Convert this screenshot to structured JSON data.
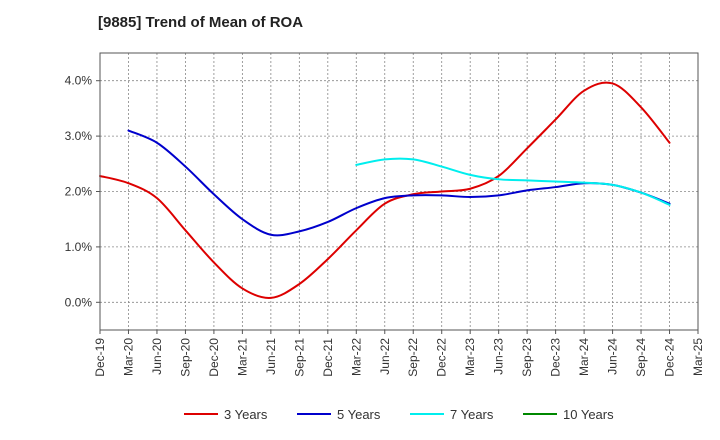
{
  "chart_data": {
    "type": "line",
    "title": "[9885]  Trend of Mean of ROA",
    "xlabel": "",
    "ylabel": "",
    "ylim": [
      -0.5,
      4.5
    ],
    "yticks": [
      0.0,
      1.0,
      2.0,
      3.0,
      4.0
    ],
    "ytick_labels": [
      "0.0%",
      "1.0%",
      "2.0%",
      "3.0%",
      "4.0%"
    ],
    "x_labels": [
      "Dec-19",
      "Mar-20",
      "Jun-20",
      "Sep-20",
      "Dec-20",
      "Mar-21",
      "Jun-21",
      "Sep-21",
      "Dec-21",
      "Mar-22",
      "Jun-22",
      "Sep-22",
      "Dec-22",
      "Mar-23",
      "Jun-23",
      "Sep-23",
      "Dec-23",
      "Mar-24",
      "Jun-24",
      "Sep-24",
      "Dec-24",
      "Mar-25"
    ],
    "grid": true,
    "legend_position": "bottom",
    "series": [
      {
        "name": "3 Years",
        "color": "#dd0000",
        "values": [
          2.28,
          2.15,
          1.88,
          1.3,
          0.72,
          0.25,
          0.08,
          0.33,
          0.78,
          1.3,
          1.78,
          1.95,
          2.0,
          2.05,
          2.28,
          2.78,
          3.3,
          3.82,
          3.95,
          3.52,
          2.88,
          null
        ]
      },
      {
        "name": "5 Years",
        "color": "#0000cc",
        "values": [
          null,
          3.1,
          2.88,
          2.45,
          1.95,
          1.5,
          1.22,
          1.28,
          1.45,
          1.7,
          1.88,
          1.93,
          1.93,
          1.9,
          1.93,
          2.02,
          2.08,
          2.15,
          2.12,
          1.98,
          1.78,
          null
        ]
      },
      {
        "name": "7 Years",
        "color": "#00eeee",
        "values": [
          null,
          null,
          null,
          null,
          null,
          null,
          null,
          null,
          null,
          2.48,
          2.58,
          2.58,
          2.45,
          2.3,
          2.22,
          2.2,
          2.18,
          2.16,
          2.12,
          1.98,
          1.76,
          null
        ]
      },
      {
        "name": "10 Years",
        "color": "#008800",
        "values": [
          null,
          null,
          null,
          null,
          null,
          null,
          null,
          null,
          null,
          null,
          null,
          null,
          null,
          null,
          null,
          null,
          null,
          null,
          null,
          null,
          null,
          null
        ]
      }
    ]
  }
}
